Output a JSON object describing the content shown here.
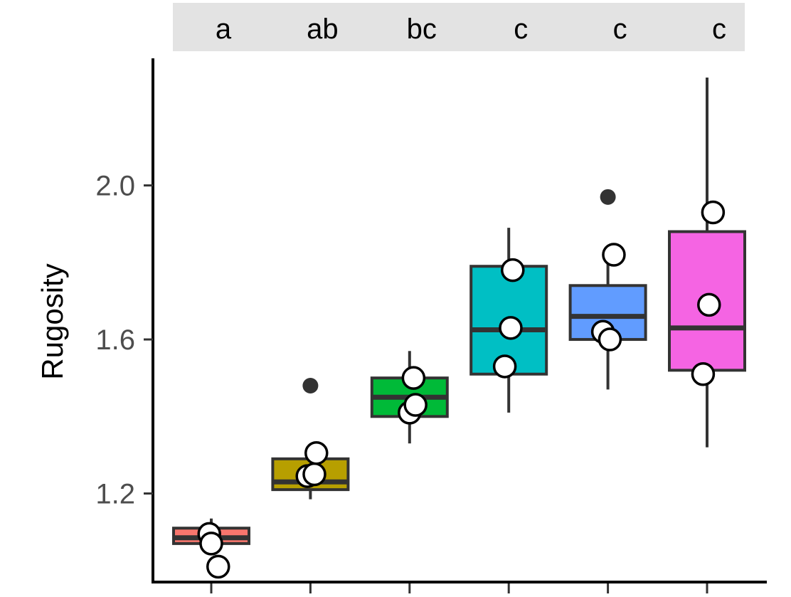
{
  "chart_data": {
    "type": "boxplot",
    "title": "",
    "xlabel": "",
    "ylabel": "Rugosity",
    "ylim": [
      0.97,
      2.33
    ],
    "yticks": [
      1.2,
      1.6,
      2.0
    ],
    "ytick_labels": [
      "1.2",
      "1.6",
      "2.0"
    ],
    "grid": false,
    "legend": "none",
    "groups": [
      {
        "letter": "a",
        "color": "#f8766d",
        "whisker_low": 1.04,
        "q1": 1.07,
        "median": 1.085,
        "q3": 1.11,
        "whisker_high": 1.135,
        "outliers": [],
        "points": [
          {
            "x": -0.02,
            "y": 1.095
          },
          {
            "x": 0.0,
            "y": 1.07
          },
          {
            "x": 0.07,
            "y": 1.01
          }
        ]
      },
      {
        "letter": "ab",
        "color": "#b79f00",
        "whisker_low": 1.185,
        "q1": 1.21,
        "median": 1.23,
        "q3": 1.29,
        "whisker_high": 1.305,
        "outliers": [
          1.48
        ],
        "points": [
          {
            "x": -0.03,
            "y": 1.245
          },
          {
            "x": 0.04,
            "y": 1.25
          },
          {
            "x": 0.06,
            "y": 1.305
          }
        ]
      },
      {
        "letter": "bc",
        "color": "#00ba38",
        "whisker_low": 1.33,
        "q1": 1.4,
        "median": 1.45,
        "q3": 1.5,
        "whisker_high": 1.57,
        "outliers": [],
        "points": [
          {
            "x": 0.0,
            "y": 1.41
          },
          {
            "x": 0.06,
            "y": 1.43
          },
          {
            "x": 0.04,
            "y": 1.5
          }
        ]
      },
      {
        "letter": "c",
        "color": "#00bfc4",
        "whisker_low": 1.41,
        "q1": 1.51,
        "median": 1.625,
        "q3": 1.79,
        "whisker_high": 1.89,
        "outliers": [],
        "points": [
          {
            "x": 0.04,
            "y": 1.78
          },
          {
            "x": 0.02,
            "y": 1.63
          },
          {
            "x": -0.04,
            "y": 1.53
          }
        ]
      },
      {
        "letter": "c",
        "color": "#619cff",
        "whisker_low": 1.47,
        "q1": 1.6,
        "median": 1.66,
        "q3": 1.74,
        "whisker_high": 1.8,
        "outliers": [
          1.97
        ],
        "points": [
          {
            "x": 0.06,
            "y": 1.82
          },
          {
            "x": -0.05,
            "y": 1.62
          },
          {
            "x": 0.02,
            "y": 1.6
          }
        ]
      },
      {
        "letter": "c",
        "color": "#f564e3",
        "whisker_low": 1.32,
        "q1": 1.52,
        "median": 1.63,
        "q3": 1.88,
        "whisker_high": 2.28,
        "outliers": [],
        "points": [
          {
            "x": 0.06,
            "y": 1.93
          },
          {
            "x": 0.02,
            "y": 1.69
          },
          {
            "x": -0.04,
            "y": 1.51
          }
        ]
      }
    ]
  }
}
